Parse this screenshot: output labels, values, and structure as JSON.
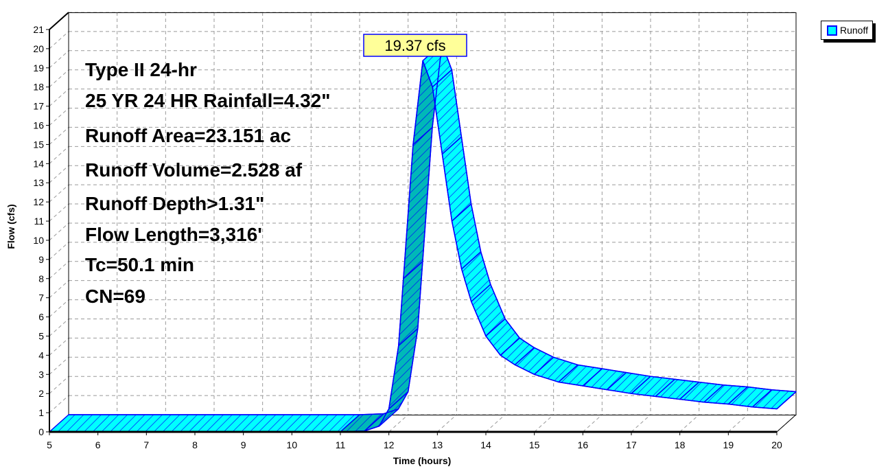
{
  "chart_data": {
    "type": "area",
    "xlabel": "Time  (hours)",
    "ylabel": "Flow  (cfs)",
    "xlim": [
      5,
      20
    ],
    "ylim": [
      0,
      21
    ],
    "x_ticks": [
      "5",
      "6",
      "7",
      "8",
      "9",
      "10",
      "11",
      "12",
      "13",
      "14",
      "15",
      "16",
      "17",
      "18",
      "19",
      "20"
    ],
    "y_ticks": [
      "0",
      "1",
      "2",
      "3",
      "4",
      "5",
      "6",
      "7",
      "8",
      "9",
      "10",
      "11",
      "12",
      "13",
      "14",
      "15",
      "16",
      "17",
      "18",
      "19",
      "20",
      "21"
    ],
    "grid": true,
    "legend": {
      "position": "top-right",
      "entries": [
        "Runoff"
      ]
    },
    "series": [
      {
        "name": "Runoff",
        "color": "#00ffff",
        "edge_color": "#0000ff",
        "x": [
          5,
          11.0,
          11.5,
          11.8,
          12.0,
          12.2,
          12.3,
          12.5,
          12.7,
          12.9,
          13.1,
          13.3,
          13.5,
          13.7,
          14.0,
          14.3,
          14.6,
          15.0,
          15.5,
          16.0,
          16.5,
          17.0,
          17.5,
          18.0,
          18.5,
          19.0,
          19.5,
          20.0
        ],
        "y": [
          0,
          0,
          0.05,
          0.3,
          1.2,
          4.5,
          8,
          15,
          19.37,
          18.0,
          14.5,
          11.0,
          8.5,
          6.8,
          5.0,
          4.0,
          3.5,
          3.0,
          2.6,
          2.4,
          2.2,
          2.0,
          1.85,
          1.7,
          1.55,
          1.45,
          1.3,
          1.2
        ]
      }
    ],
    "peak_label": "19.37 cfs",
    "annotation_lines": [
      "Type II 24-hr",
      "25 YR 24 HR Rainfall=4.32\"",
      "Runoff Area=23.151 ac",
      "Runoff Volume=2.528 af",
      "Runoff Depth>1.31\"",
      "Flow Length=3,316'",
      "Tc=50.1 min",
      "CN=69"
    ],
    "colors": {
      "label_fill": "#ffff99",
      "label_border": "#0000ff",
      "grid": "#999999"
    }
  }
}
